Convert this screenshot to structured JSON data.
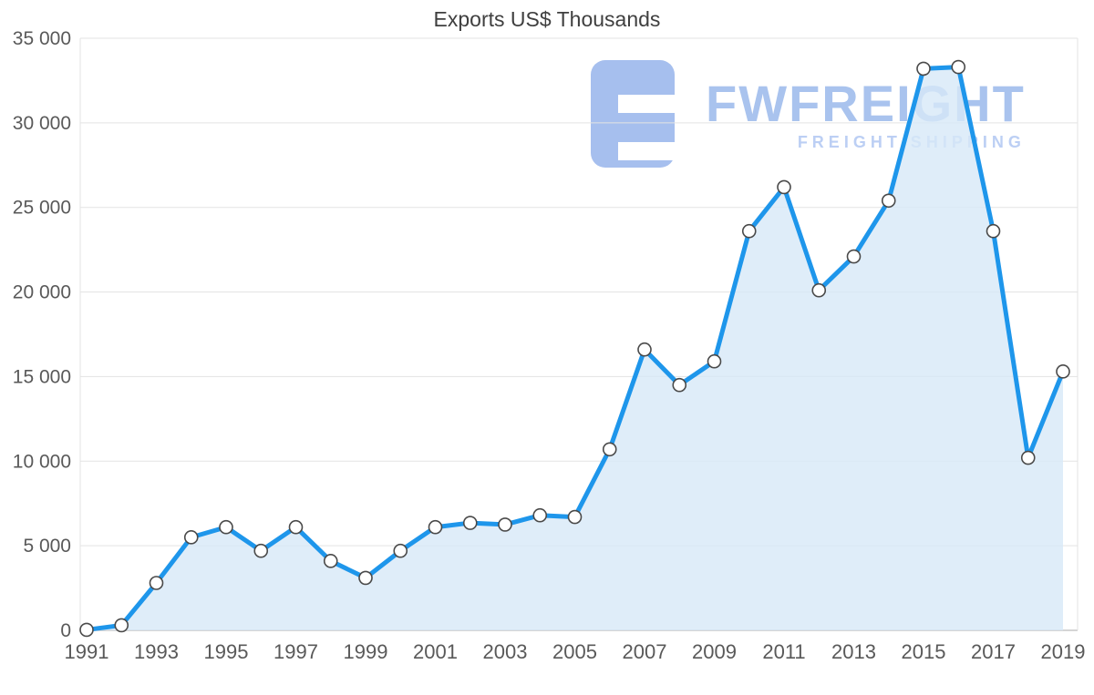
{
  "title": "Exports US$ Thousands",
  "watermark": {
    "brand": "FWFREIGHT",
    "tagline": "FREIGHT SHIPPING",
    "logo_color": "#a6bfee"
  },
  "chart_data": {
    "type": "area",
    "title": "Exports US$ Thousands",
    "x": [
      1991,
      1992,
      1993,
      1994,
      1995,
      1996,
      1997,
      1998,
      1999,
      2000,
      2001,
      2002,
      2003,
      2004,
      2005,
      2006,
      2007,
      2008,
      2009,
      2010,
      2011,
      2012,
      2013,
      2014,
      2015,
      2016,
      2017,
      2018,
      2019
    ],
    "values": [
      30,
      300,
      2800,
      5500,
      6100,
      4700,
      6100,
      4100,
      3100,
      4700,
      6100,
      6350,
      6250,
      6800,
      6700,
      10700,
      16600,
      14500,
      15900,
      23600,
      26200,
      20100,
      22100,
      25400,
      33200,
      33300,
      23600,
      10200,
      15300
    ],
    "ylim": [
      0,
      35000
    ],
    "yticks": [
      0,
      5000,
      10000,
      15000,
      20000,
      25000,
      30000,
      35000
    ],
    "ytick_labels": [
      "0",
      "5 000",
      "10 000",
      "15 000",
      "20 000",
      "25 000",
      "30 000",
      "35 000"
    ],
    "xtick_step": 2,
    "grid": true,
    "legend": "none",
    "line_color": "#1e96eb",
    "fill_color": "#d7e9f8",
    "marker_fill": "#ffffff",
    "marker_stroke": "#4a4a4a",
    "axis_label_color": "#595959",
    "grid_color": "#e3e3e3"
  }
}
